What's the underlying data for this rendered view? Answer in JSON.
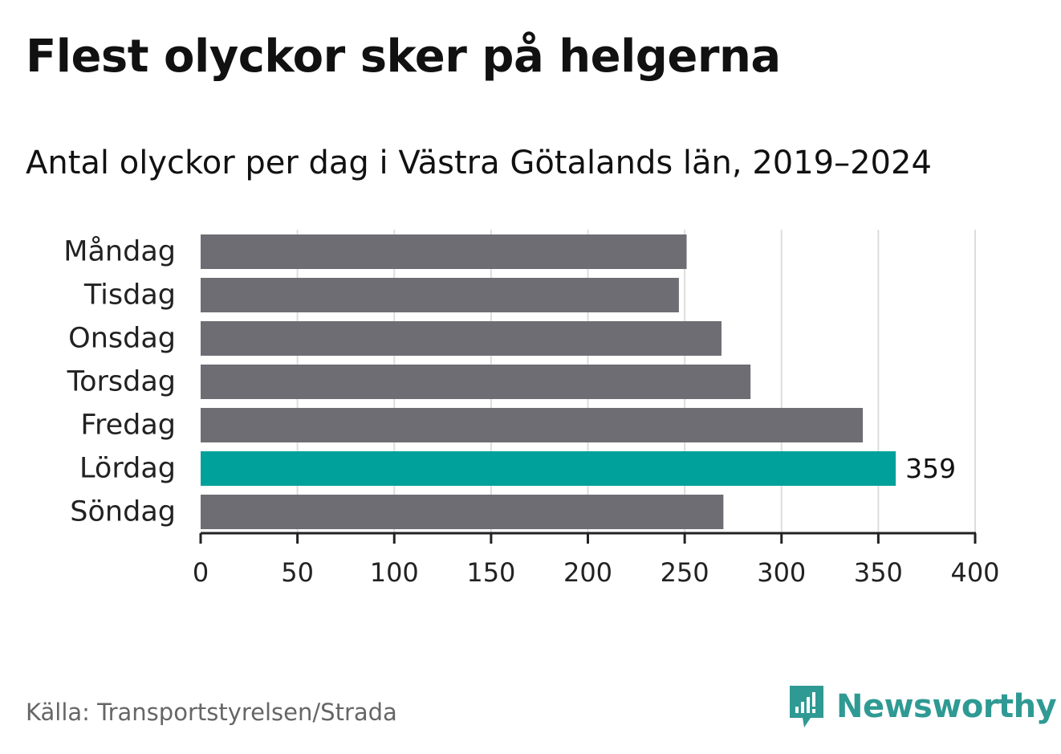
{
  "title": "Flest olyckor sker på helgerna",
  "subtitle": "Antal olyckor per dag i Västra Götalands län, 2019–2024",
  "source": "Källa: Transportstyrelsen/Strada",
  "brand": {
    "name": "Newsworthy",
    "icon": "newsworthy-logo-icon"
  },
  "colors": {
    "bar": "#6e6d73",
    "highlight": "#00a19a",
    "grid": "#dddddd",
    "axis": "#222222",
    "text": "#222222"
  },
  "chart_data": {
    "type": "bar",
    "orientation": "horizontal",
    "categories": [
      "Måndag",
      "Tisdag",
      "Onsdag",
      "Torsdag",
      "Fredag",
      "Lördag",
      "Söndag"
    ],
    "values": [
      251,
      247,
      269,
      284,
      342,
      359,
      270
    ],
    "highlight_index": 5,
    "data_labels": {
      "Lördag": "359"
    },
    "xlim": [
      0,
      400
    ],
    "xticks": [
      0,
      50,
      100,
      150,
      200,
      250,
      300,
      350,
      400
    ],
    "grid": true
  }
}
